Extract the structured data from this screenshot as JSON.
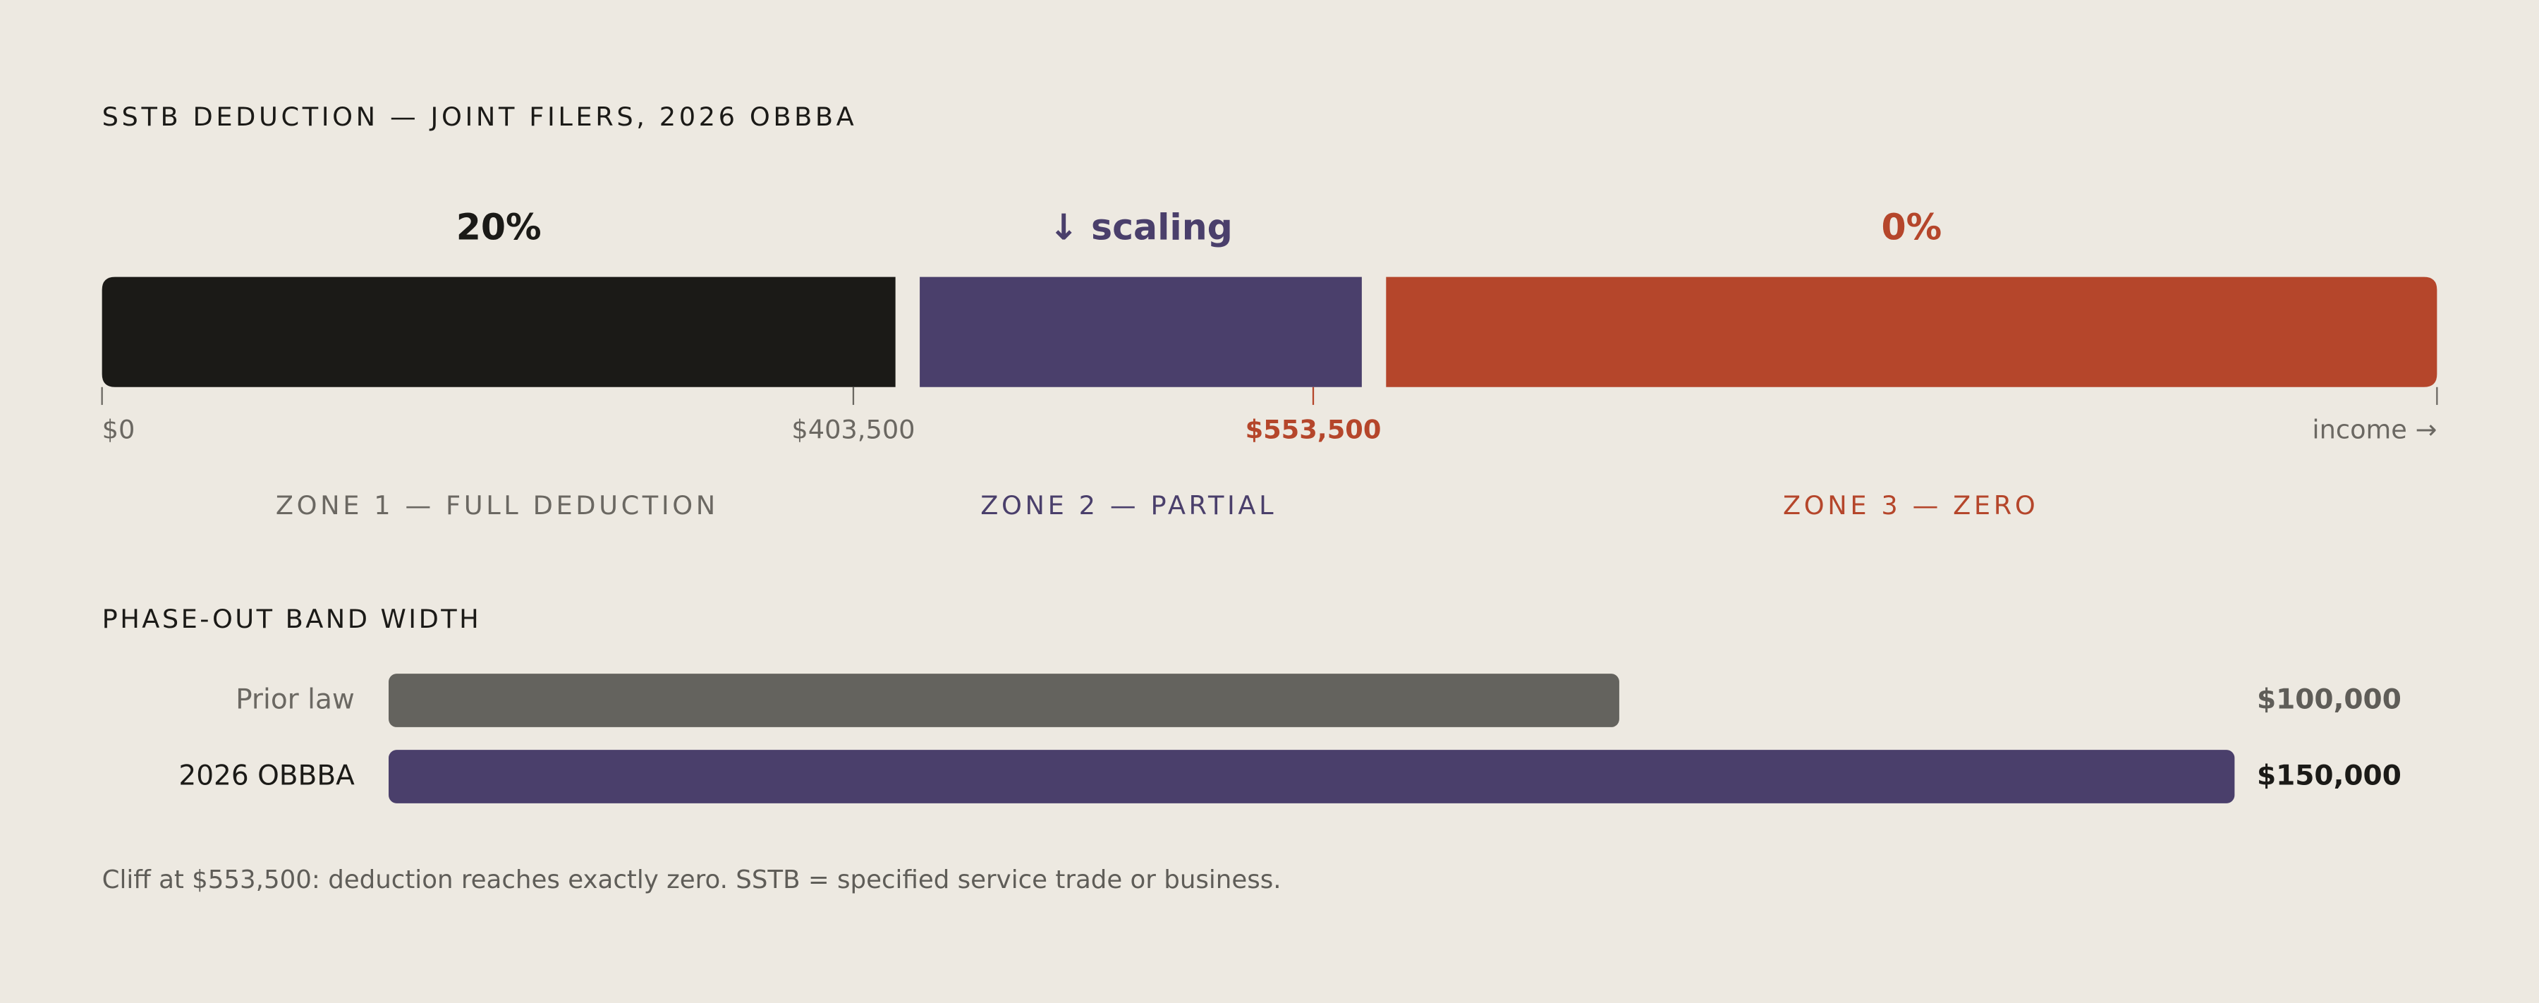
{
  "title": "SSTB DEDUCTION — JOINT FILERS, 2026 OBBBA",
  "zones": [
    {
      "rate": "20%",
      "label": "ZONE 1 — FULL DEDUCTION",
      "color": "#1b1a17",
      "label_color": "#6b6862"
    },
    {
      "rate": "↓ scaling",
      "label": "ZONE 2 — PARTIAL",
      "color": "#4a3f6b",
      "label_color": "#4a3f6b"
    },
    {
      "rate": "0%",
      "label": "ZONE 3 — ZERO",
      "color": "#b5462b",
      "label_color": "#b5462b"
    }
  ],
  "thresholds": [
    {
      "value": 0,
      "label": "$0"
    },
    {
      "value": 403500,
      "label": "$403,500"
    },
    {
      "value": 553500,
      "label": "$553,500"
    }
  ],
  "axis_end": "income →",
  "band_width": {
    "title": "PHASE-OUT BAND WIDTH",
    "categories": [
      "Prior law",
      "2026 OBBBA"
    ],
    "values": [
      100000,
      150000
    ],
    "value_labels": [
      "$100,000",
      "$150,000"
    ],
    "colors": [
      "#64635e",
      "#4a3f6b"
    ],
    "xlim": [
      0,
      150000
    ]
  },
  "footnote": "Cliff at $553,500: deduction reaches exactly zero. SSTB = specified service trade or business."
}
